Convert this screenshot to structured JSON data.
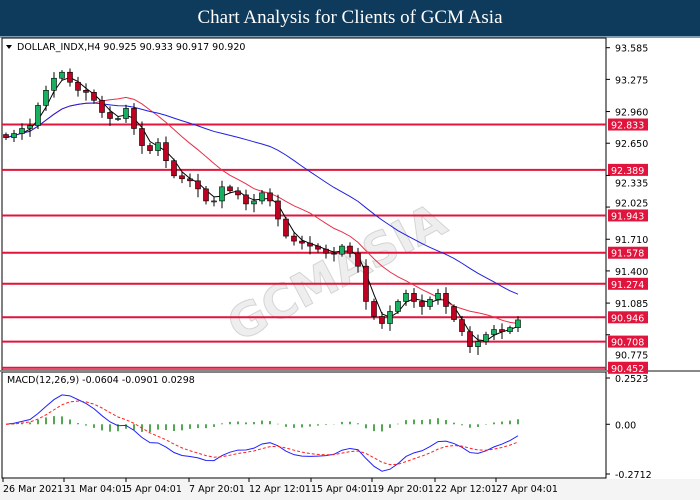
{
  "header": {
    "title": "Chart Analysis for Clients of GCM Asia"
  },
  "chart_data": {
    "type": "candlestick",
    "symbol_info": "DOLLAR_INDX,H4  90.925 90.933 90.917 90.920",
    "ohlc_current": {
      "open": 90.925,
      "high": 90.933,
      "low": 90.917,
      "close": 90.92
    },
    "price_axis_ticks": [
      "93.585",
      "93.275",
      "92.960",
      "92.650",
      "92.335",
      "92.025",
      "91.710",
      "91.400",
      "91.085",
      "90.775"
    ],
    "price_ylim": [
      90.43,
      93.68
    ],
    "horizontal_levels": [
      "92.833",
      "92.389",
      "91.943",
      "91.578",
      "91.274",
      "90.946",
      "90.708",
      "90.452"
    ],
    "level_color": "#e0143c",
    "time_axis_labels": [
      "26 Mar 2021",
      "31 Mar 04:01",
      "5 Apr 04:01",
      "7 Apr 20:01",
      "12 Apr 12:01",
      "15 Apr 04:01",
      "19 Apr 20:01",
      "22 Apr 12:01",
      "27 Apr 04:01"
    ],
    "closes": [
      92.705,
      92.745,
      92.794,
      92.823,
      93.02,
      93.168,
      93.286,
      93.345,
      93.247,
      93.168,
      93.148,
      93.07,
      92.951,
      92.892,
      92.892,
      92.991,
      92.794,
      92.627,
      92.578,
      92.656,
      92.479,
      92.331,
      92.302,
      92.282,
      92.203,
      92.085,
      92.085,
      92.223,
      92.184,
      92.144,
      92.056,
      92.085,
      92.164,
      92.085,
      91.908,
      91.741,
      91.692,
      91.672,
      91.643,
      91.613,
      91.574,
      91.564,
      91.643,
      91.574,
      91.446,
      91.101,
      90.954,
      90.885,
      91.003,
      91.101,
      91.18,
      91.101,
      91.052,
      91.121,
      91.18,
      91.052,
      90.924,
      90.806,
      90.659,
      90.708,
      90.777,
      90.826,
      90.806,
      90.845,
      90.92
    ],
    "moving_averages": [
      {
        "color": "#000000"
      },
      {
        "color": "#e8304a"
      },
      {
        "color": "#2020e0"
      }
    ],
    "up_color": "#18b060",
    "down_color": "#c00020",
    "macd": {
      "label": "MACD(12,26,9) -0.0604 -0.0901 0.0298",
      "axis_ticks": [
        "0.2523",
        "0.00",
        "-0.2712"
      ],
      "ylim": [
        -0.2712,
        0.2523
      ],
      "histogram_color": "#1a8a1a",
      "macd_color": "#2020ff",
      "signal_color": "#ff2020"
    },
    "watermark": "GCMASIA"
  }
}
